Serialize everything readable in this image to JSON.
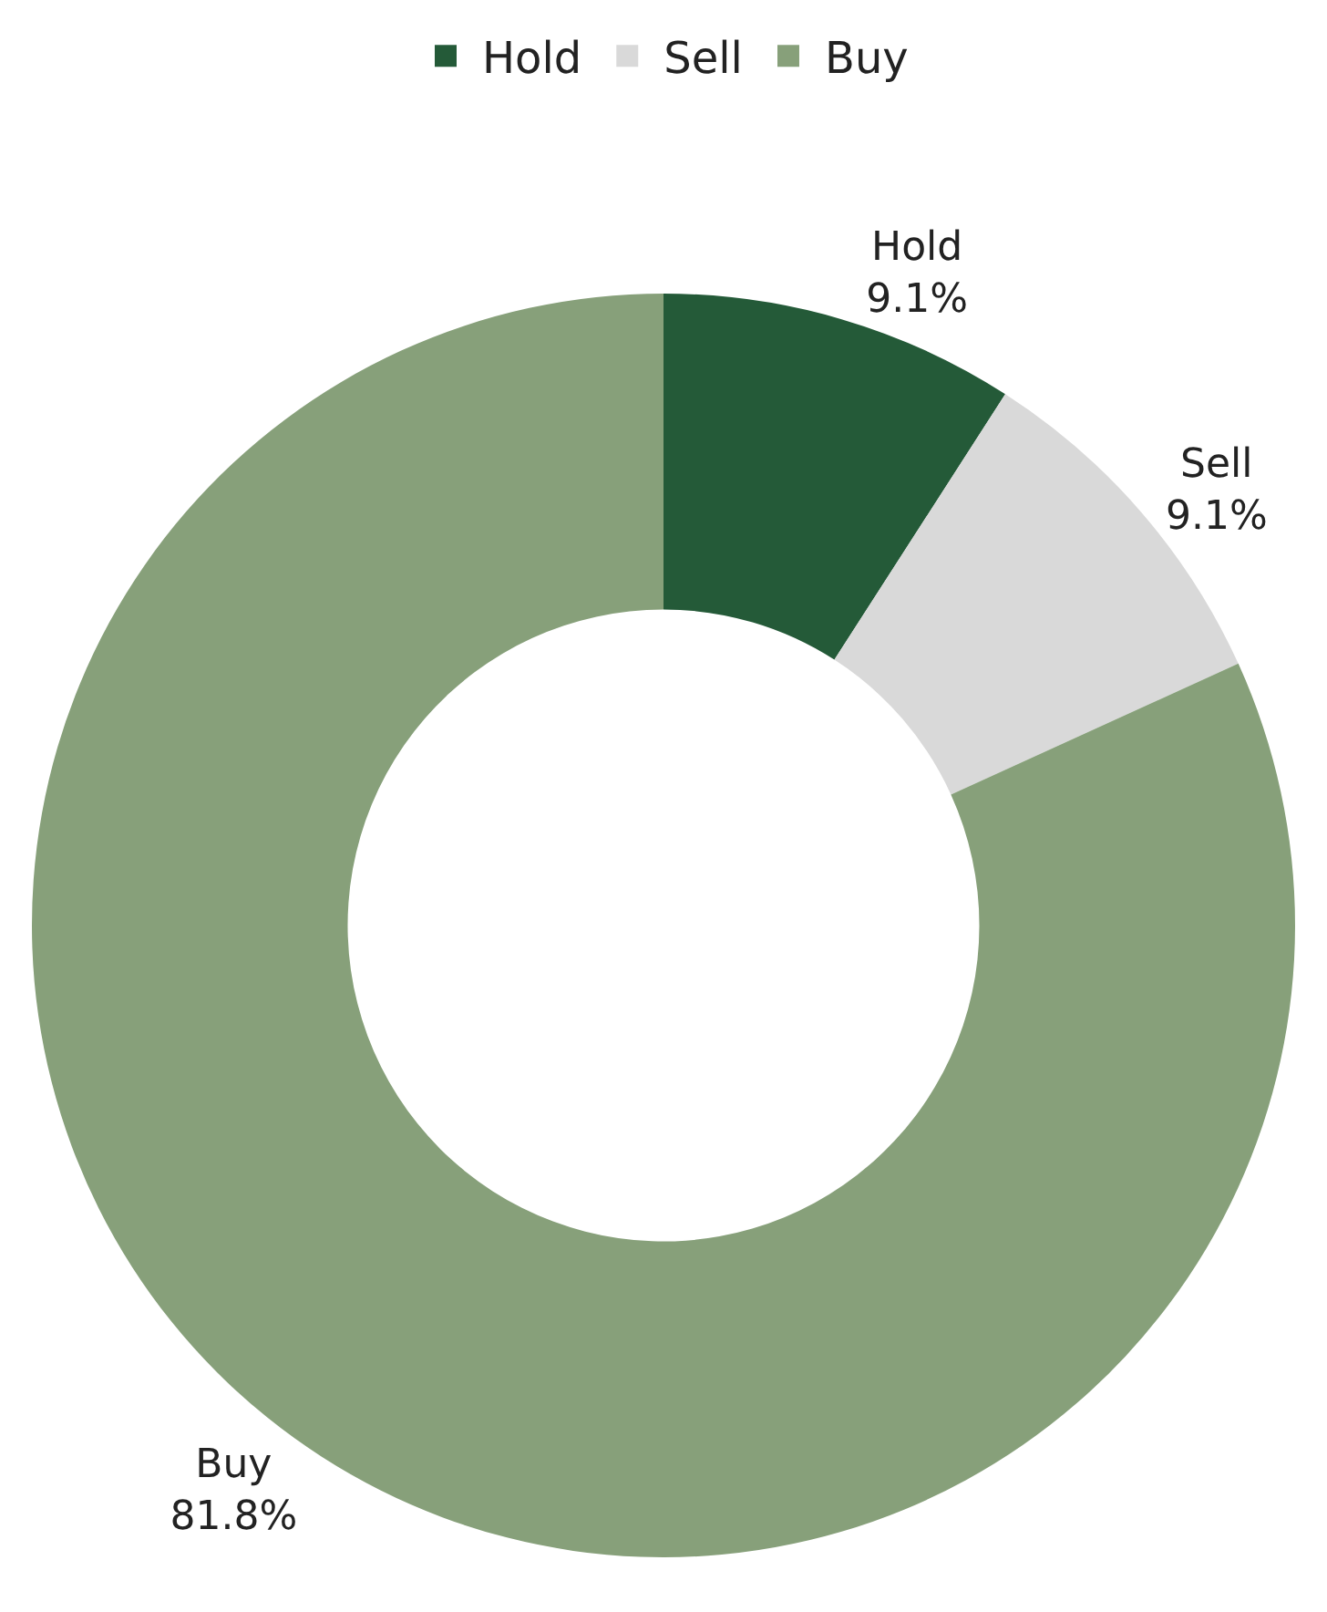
{
  "chart_data": {
    "type": "donut",
    "categories": [
      "Hold",
      "Sell",
      "Buy"
    ],
    "values": [
      9.1,
      9.1,
      81.8
    ],
    "value_labels": [
      "9.1%",
      "9.1%",
      "81.8%"
    ],
    "colors": [
      "#245a38",
      "#d9d9d9",
      "#87a07a"
    ],
    "legend": "top"
  }
}
